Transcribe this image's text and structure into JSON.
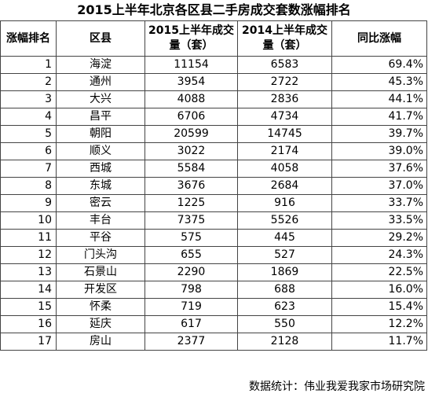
{
  "title": "2015上半年北京各区县二手房成交套数涨幅排名",
  "columns": {
    "rank": "涨幅排名",
    "district": "区县",
    "vol2015": "2015上半年成交量（套）",
    "vol2014": "2014上半年成交量（套）",
    "growth": "同比涨幅"
  },
  "rows": [
    {
      "rank": "1",
      "district": "海淀",
      "vol2015": "11154",
      "vol2014": "6583",
      "growth": "69.4%"
    },
    {
      "rank": "2",
      "district": "通州",
      "vol2015": "3954",
      "vol2014": "2722",
      "growth": "45.3%"
    },
    {
      "rank": "3",
      "district": "大兴",
      "vol2015": "4088",
      "vol2014": "2836",
      "growth": "44.1%"
    },
    {
      "rank": "4",
      "district": "昌平",
      "vol2015": "6706",
      "vol2014": "4734",
      "growth": "41.7%"
    },
    {
      "rank": "5",
      "district": "朝阳",
      "vol2015": "20599",
      "vol2014": "14745",
      "growth": "39.7%"
    },
    {
      "rank": "6",
      "district": "顺义",
      "vol2015": "3022",
      "vol2014": "2174",
      "growth": "39.0%"
    },
    {
      "rank": "7",
      "district": "西城",
      "vol2015": "5584",
      "vol2014": "4058",
      "growth": "37.6%"
    },
    {
      "rank": "8",
      "district": "东城",
      "vol2015": "3676",
      "vol2014": "2684",
      "growth": "37.0%"
    },
    {
      "rank": "9",
      "district": "密云",
      "vol2015": "1225",
      "vol2014": "916",
      "growth": "33.7%"
    },
    {
      "rank": "10",
      "district": "丰台",
      "vol2015": "7375",
      "vol2014": "5526",
      "growth": "33.5%"
    },
    {
      "rank": "11",
      "district": "平谷",
      "vol2015": "575",
      "vol2014": "445",
      "growth": "29.2%"
    },
    {
      "rank": "12",
      "district": "门头沟",
      "vol2015": "655",
      "vol2014": "527",
      "growth": "24.3%"
    },
    {
      "rank": "13",
      "district": "石景山",
      "vol2015": "2290",
      "vol2014": "1869",
      "growth": "22.5%"
    },
    {
      "rank": "14",
      "district": "开发区",
      "vol2015": "798",
      "vol2014": "688",
      "growth": "16.0%"
    },
    {
      "rank": "15",
      "district": "怀柔",
      "vol2015": "719",
      "vol2014": "623",
      "growth": "15.4%"
    },
    {
      "rank": "16",
      "district": "延庆",
      "vol2015": "617",
      "vol2014": "550",
      "growth": "12.2%"
    },
    {
      "rank": "17",
      "district": "房山",
      "vol2015": "2377",
      "vol2014": "2128",
      "growth": "11.7%"
    }
  ],
  "footer": "数据统计：伟业我爱我家市场研究院"
}
